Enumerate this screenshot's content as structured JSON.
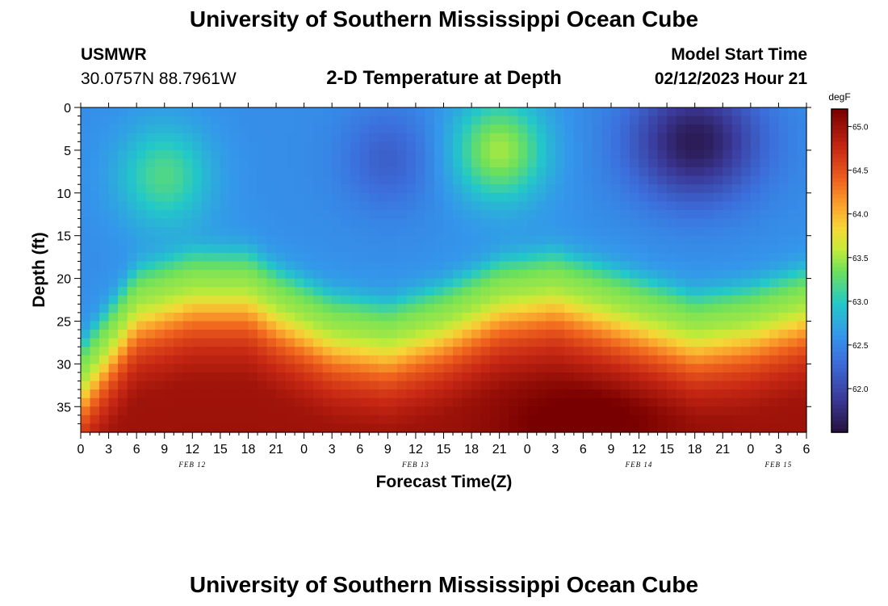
{
  "header": {
    "title": "University of Southern Mississippi Ocean Cube",
    "station_id": "USMWR",
    "coordinates": "30.0757N  88.7961W",
    "plot_title": "2-D Temperature at Depth",
    "model_start_label": "Model Start Time",
    "model_start_value": "02/12/2023 Hour 21"
  },
  "footer": {
    "title": "University of Southern Mississippi Ocean Cube"
  },
  "chart_data": {
    "type": "heatmap",
    "title": "2-D Temperature at Depth",
    "xlabel": "Forecast Time(Z)",
    "ylabel": "Depth (ft)",
    "xlim": [
      0,
      78
    ],
    "ylim": [
      38,
      0
    ],
    "x_ticks": [
      "0",
      "3",
      "6",
      "9",
      "12",
      "15",
      "18",
      "21",
      "0",
      "3",
      "6",
      "9",
      "12",
      "15",
      "18",
      "21",
      "0",
      "3",
      "6",
      "9",
      "12",
      "15",
      "18",
      "21",
      "0",
      "3",
      "6"
    ],
    "date_labels": [
      {
        "text": "FEB 12",
        "x": 12
      },
      {
        "text": "FEB 13",
        "x": 36
      },
      {
        "text": "FEB 14",
        "x": 60
      },
      {
        "text": "FEB 15",
        "x": 75
      }
    ],
    "y_ticks": [
      0,
      5,
      10,
      15,
      20,
      25,
      30,
      35
    ],
    "colorbar": {
      "unit": "degF",
      "min": 61.5,
      "max": 65.2,
      "ticks": [
        "65.0",
        "64.5",
        "64.0",
        "63.5",
        "63.0",
        "62.5",
        "62.0"
      ]
    },
    "thermocline_depth_ft": {
      "x": [
        0,
        6,
        12,
        18,
        21,
        27,
        33,
        39,
        45,
        51,
        57,
        63,
        66,
        72,
        78
      ],
      "depth": [
        33,
        24,
        22,
        22,
        24,
        27,
        28,
        26,
        23,
        22,
        24,
        26,
        27,
        26,
        24
      ]
    },
    "surface_features": [
      {
        "name": "warm-pocket-feb12",
        "x": 9,
        "depth": 8,
        "value": 63.2
      },
      {
        "name": "warm-plume-feb13",
        "x": 45,
        "depth": 5,
        "value": 63.5
      },
      {
        "name": "cold-core-feb14",
        "x": 66,
        "depth": 4,
        "value": 61.6
      },
      {
        "name": "cool-band-feb13",
        "x": 33,
        "depth": 6,
        "value": 62.2
      }
    ],
    "deep_max": {
      "x": 54,
      "depth": 37,
      "value": 65.2
    }
  }
}
